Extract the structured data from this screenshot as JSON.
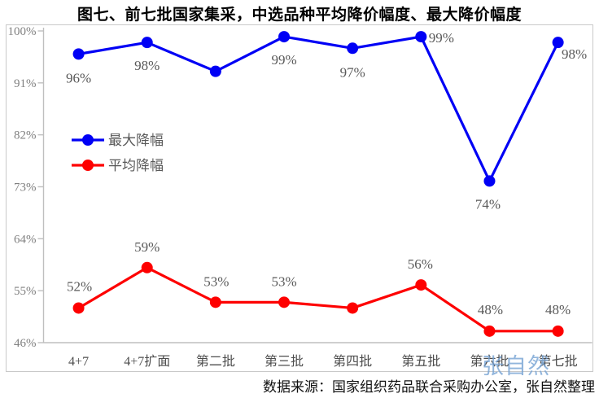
{
  "title": "图七、前七批国家集采，中选品种平均降价幅度、最大降价幅度",
  "source_note": "数据来源：国家组织药品联合采购办公室，张自然整理",
  "watermark": "张自然",
  "colors": {
    "max_series_blue": "#0000f5",
    "avg_series_red": "#fe0000",
    "axis_line_gray": "#bfbfbf",
    "frame_gray": "#c9c9c9",
    "tick_text_gray": "#808080",
    "data_label_gray": "#595959",
    "watermark_blue": "#76a3d4"
  },
  "chart_data": {
    "type": "line",
    "title": "图七、前七批国家集采，中选品种平均降价幅度、最大降价幅度",
    "categories": [
      "4+7",
      "4+7扩面",
      "第二批",
      "第三批",
      "第四批",
      "第五批",
      "第六批",
      "第七批"
    ],
    "series": [
      {
        "name": "最大降幅",
        "color_key": "max_series_blue",
        "values": [
          96,
          98,
          93,
          99,
          97,
          99,
          74,
          98
        ],
        "point_labels": [
          "96%",
          "98%",
          "",
          "99%",
          "97%",
          "99%",
          "74%",
          "98%"
        ],
        "label_offsets": [
          [
            0,
            29
          ],
          [
            0,
            28
          ],
          null,
          [
            0,
            28
          ],
          [
            0,
            29
          ],
          [
            25,
            1
          ],
          [
            -2,
            28
          ],
          [
            20,
            14
          ]
        ]
      },
      {
        "name": "平均降幅",
        "color_key": "avg_series_red",
        "values": [
          52,
          59,
          53,
          53,
          52,
          56,
          48,
          48
        ],
        "point_labels": [
          "52%",
          "59%",
          "53%",
          "53%",
          "",
          "56%",
          "48%",
          "48%"
        ],
        "label_offsets": [
          [
            1,
            -27
          ],
          [
            0,
            -26
          ],
          [
            1,
            -26
          ],
          [
            0,
            -26
          ],
          null,
          [
            -1,
            -26
          ],
          [
            1,
            -27
          ],
          [
            0,
            -27
          ]
        ]
      }
    ],
    "y_ticks": [
      "100%",
      "91%",
      "82%",
      "73%",
      "64%",
      "55%",
      "46%"
    ],
    "y_tick_values": [
      100,
      91,
      82,
      73,
      64,
      55,
      46
    ],
    "ylim": [
      46,
      100
    ],
    "xlabel": "",
    "ylabel": "",
    "grid": false,
    "legend_position": "inside-upper-left"
  }
}
